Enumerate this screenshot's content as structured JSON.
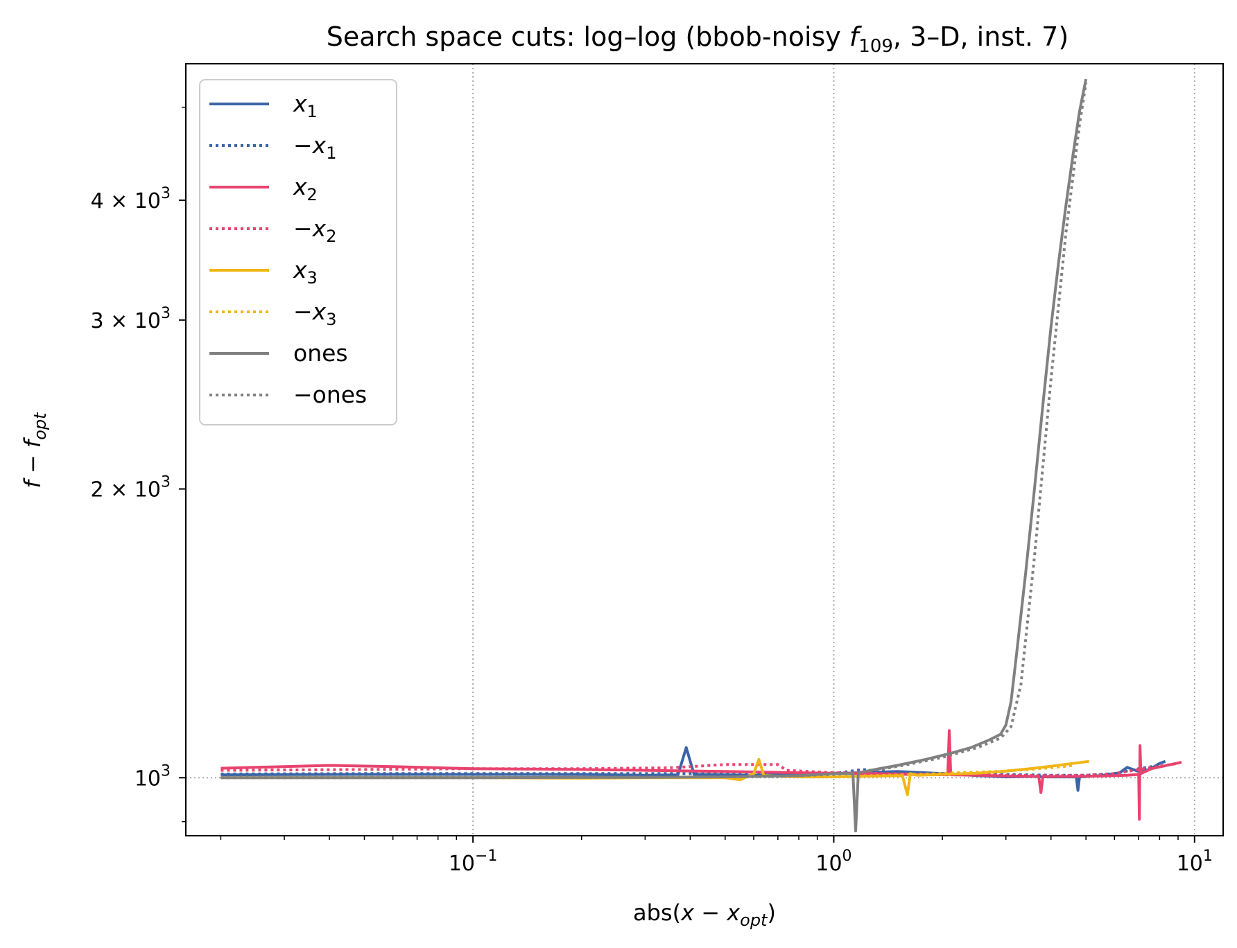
{
  "chart_data": {
    "type": "line",
    "title": "Search space cuts: log–log (bbob-noisy f109, 3–D, inst. 7)",
    "title_parts": {
      "prefix": "Search space cuts: log–log (bbob-noisy ",
      "func": "f",
      "func_sub": "109",
      "suffix": ", 3–D, inst. 7)"
    },
    "xlabel": "abs(x − x_opt)",
    "xlabel_parts": {
      "prefix": "abs(",
      "var": "x − x",
      "sub": "opt",
      "suffix": ")"
    },
    "ylabel": "f − f_opt",
    "ylabel_parts": {
      "var": "f − f",
      "sub": "opt"
    },
    "x_scale": "log",
    "y_scale": "log",
    "xlim": [
      0.016,
      12.0
    ],
    "ylim": [
      870,
      5550
    ],
    "grid": "dotted gray at major ticks",
    "legend_position": "upper-left",
    "x_ticks": [
      {
        "value": 0.1,
        "base": "10",
        "exp": "−1"
      },
      {
        "value": 1,
        "base": "10",
        "exp": "0"
      },
      {
        "value": 10,
        "base": "10",
        "exp": "1"
      }
    ],
    "y_ticks": [
      {
        "value": 1000,
        "label": "10",
        "sup": "3"
      },
      {
        "value": 2000,
        "label": "2 × 10",
        "sup": "3"
      },
      {
        "value": 3000,
        "label": "3 × 10",
        "sup": "3"
      },
      {
        "value": 4000,
        "label": "4 × 10",
        "sup": "3"
      }
    ],
    "reference_line_y": 1000,
    "series": [
      {
        "name": "x1",
        "label_var": "x",
        "label_sub": "1",
        "label_prefix": "",
        "color": "#3a64a8",
        "style": "solid",
        "x": [
          0.02,
          0.05,
          0.1,
          0.2,
          0.3,
          0.37,
          0.39,
          0.41,
          0.6,
          1.0,
          1.5,
          2.0,
          2.5,
          3.0,
          3.5,
          4.0,
          4.5,
          4.7,
          4.75,
          4.8,
          5.5,
          6.2,
          6.5,
          7.0,
          7.5,
          8.0,
          8.3
        ],
        "y": [
          1007,
          1008,
          1008,
          1008,
          1006,
          1007,
          1075,
          1008,
          1006,
          1010,
          1015,
          1010,
          1005,
          1002,
          1003,
          1002,
          1002,
          1002,
          970,
          1002,
          1005,
          1012,
          1025,
          1015,
          1020,
          1035,
          1040
        ]
      },
      {
        "name": "−x1",
        "label_var": "x",
        "label_sub": "1",
        "label_prefix": "−",
        "color": "#3a64a8",
        "style": "dotted",
        "x": [
          0.02,
          0.05,
          0.1,
          0.2,
          0.3,
          0.5,
          1.0,
          1.2,
          1.5,
          2.0,
          3.0,
          4.0,
          5.0,
          6.0,
          7.0,
          8.0
        ],
        "y": [
          1009,
          1010,
          1010,
          1010,
          1010,
          1010,
          1010,
          1020,
          1012,
          1010,
          1008,
          1006,
          1006,
          1010,
          1022,
          1030
        ]
      },
      {
        "name": "x2",
        "label_var": "x",
        "label_sub": "2",
        "label_prefix": "",
        "color": "#e8436f",
        "style": "solid",
        "x": [
          0.02,
          0.04,
          0.06,
          0.1,
          0.2,
          0.3,
          0.5,
          0.8,
          1.2,
          1.6,
          2.07,
          2.09,
          2.11,
          2.5,
          3.0,
          3.7,
          3.75,
          3.8,
          4.5,
          5.5,
          6.5,
          7.0,
          7.03,
          7.06,
          7.1,
          7.3,
          7.6,
          9.2
        ],
        "y": [
          1023,
          1030,
          1027,
          1022,
          1020,
          1018,
          1015,
          1012,
          1010,
          1008,
          1007,
          1120,
          1007,
          1006,
          1004,
          1003,
          965,
          1003,
          1003,
          1004,
          1006,
          1008,
          905,
          1080,
          1010,
          1015,
          1022,
          1038
        ]
      },
      {
        "name": "−x2",
        "label_var": "x",
        "label_sub": "2",
        "label_prefix": "−",
        "color": "#e8436f",
        "style": "dotted",
        "x": [
          0.02,
          0.05,
          0.1,
          0.2,
          0.35,
          0.5,
          0.7,
          0.74,
          1.0,
          2.0,
          3.0,
          4.0,
          5.0,
          6.0,
          7.0,
          8.0,
          9.0
        ],
        "y": [
          1018,
          1020,
          1022,
          1022,
          1024,
          1032,
          1032,
          1018,
          1012,
          1008,
          1006,
          1005,
          1006,
          1010,
          1020,
          1028,
          1035
        ]
      },
      {
        "name": "x3",
        "label_var": "x",
        "label_sub": "3",
        "label_prefix": "",
        "color": "#f0b617",
        "style": "solid",
        "x": [
          0.02,
          0.1,
          0.2,
          0.3,
          0.5,
          0.55,
          0.6,
          0.62,
          0.64,
          0.8,
          1.0,
          1.3,
          1.55,
          1.6,
          1.63,
          1.7,
          2.0,
          2.5,
          3.0,
          3.5,
          4.0,
          5.1
        ],
        "y": [
          1000,
          1000,
          999,
          1000,
          1000,
          995,
          1010,
          1045,
          1005,
          1002,
          1002,
          1004,
          1005,
          960,
          1010,
          1006,
          1008,
          1011,
          1016,
          1022,
          1028,
          1040
        ]
      },
      {
        "name": "−x3",
        "label_var": "x",
        "label_sub": "3",
        "label_prefix": "−",
        "color": "#f0b617",
        "style": "dotted",
        "x": [
          0.02,
          0.1,
          0.2,
          0.3,
          0.5,
          0.7,
          1.0,
          1.3,
          1.7,
          2.2,
          2.8,
          3.5,
          4.2,
          4.6
        ],
        "y": [
          1001,
          1001,
          1001,
          1001,
          1002,
          1003,
          1004,
          1005,
          1008,
          1012,
          1015,
          1020,
          1026,
          1030
        ]
      },
      {
        "name": "ones",
        "label_var": "",
        "label_sub": "",
        "label_prefix": "ones",
        "color": "#808080",
        "style": "solid",
        "x": [
          0.02,
          0.05,
          0.1,
          0.2,
          0.3,
          0.5,
          0.8,
          1.0,
          1.13,
          1.15,
          1.17,
          1.3,
          1.5,
          1.8,
          2.1,
          2.4,
          2.7,
          2.9,
          3.0,
          3.1,
          3.2,
          3.4,
          3.6,
          3.8,
          4.0,
          4.2,
          4.4,
          4.6,
          4.8,
          5.0
        ],
        "y": [
          1000,
          1000,
          1000,
          1001,
          1001,
          1002,
          1005,
          1010,
          1010,
          880,
          1012,
          1020,
          1030,
          1045,
          1060,
          1075,
          1095,
          1110,
          1135,
          1200,
          1330,
          1630,
          2000,
          2450,
          2950,
          3450,
          3950,
          4450,
          4950,
          5350
        ]
      },
      {
        "name": "−ones",
        "label_var": "",
        "label_sub": "",
        "label_prefix": "−ones",
        "color": "#808080",
        "style": "dotted",
        "x": [
          0.02,
          0.1,
          0.3,
          0.7,
          1.0,
          1.3,
          1.6,
          2.0,
          2.5,
          2.9,
          3.1,
          3.3,
          3.6,
          4.0,
          4.4,
          4.8,
          5.0
        ],
        "y": [
          1000,
          1000,
          1001,
          1003,
          1008,
          1018,
          1032,
          1050,
          1075,
          1100,
          1130,
          1250,
          1700,
          2600,
          3700,
          4800,
          5300
        ]
      }
    ]
  }
}
